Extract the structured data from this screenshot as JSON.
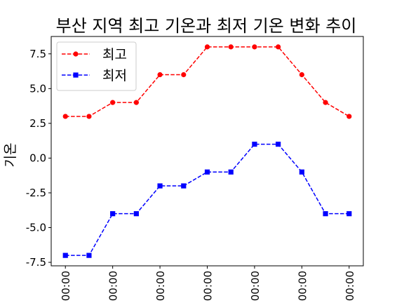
{
  "chart_data": {
    "type": "line",
    "title": "부산 지역 최고 기온과 최저 기온 변화 추이",
    "xlabel": "",
    "ylabel": "기온",
    "x_tick_labels": [
      "00:00",
      "00:00",
      "00:00",
      "00:00",
      "00:00",
      "00:00",
      "00:00"
    ],
    "x_tick_positions": [
      0,
      2,
      4,
      6,
      8,
      10,
      12
    ],
    "x": [
      0,
      1,
      2,
      3,
      4,
      5,
      6,
      7,
      8,
      9,
      10,
      11,
      12
    ],
    "ylim": [
      -7.75,
      8.75
    ],
    "yticks": [
      -7.5,
      -5.0,
      -2.5,
      0.0,
      2.5,
      5.0,
      7.5
    ],
    "ytick_labels": [
      "-7.5",
      "-5.0",
      "-2.5",
      "0.0",
      "2.5",
      "5.0",
      "7.5"
    ],
    "grid": false,
    "legend_position": "top-left",
    "series": [
      {
        "name": "최고",
        "color": "#ff0000",
        "marker": "circle",
        "linestyle": "dashed",
        "values": [
          3,
          3,
          4,
          4,
          6,
          6,
          8,
          8,
          8,
          8,
          6,
          4,
          3
        ]
      },
      {
        "name": "최저",
        "color": "#0000ff",
        "marker": "square",
        "linestyle": "dashed",
        "values": [
          -7,
          -7,
          -4,
          -4,
          -2,
          -2,
          -1,
          -1,
          1,
          1,
          -1,
          -4,
          -4
        ]
      }
    ]
  }
}
